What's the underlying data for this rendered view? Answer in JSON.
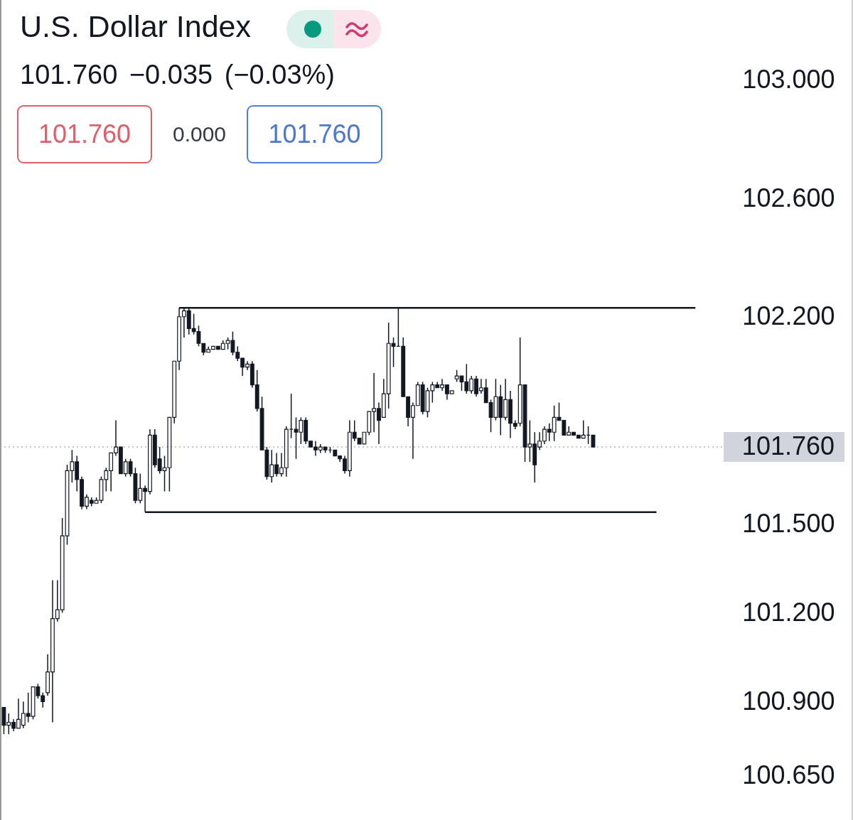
{
  "chart_data": {
    "type": "candlestick",
    "title": "U.S. Dollar Index",
    "subtitle": "101.760 −0.035 (−0.03%)",
    "annotations": [
      "101.760",
      "0.000",
      "101.760"
    ],
    "categories": [
      null,
      null,
      null,
      null,
      null,
      null,
      null,
      null,
      null,
      null,
      null,
      null,
      null,
      null,
      null,
      null,
      null,
      null,
      null,
      null,
      null,
      null,
      null,
      null,
      null,
      null,
      null,
      null,
      null,
      null,
      null,
      null,
      null,
      null,
      null,
      null,
      null,
      null,
      null,
      null,
      null,
      null,
      null,
      null,
      null,
      null,
      null,
      null,
      null,
      null,
      null,
      null,
      null,
      null,
      null,
      null,
      null,
      null,
      null,
      null,
      null,
      null,
      null,
      null,
      null,
      null,
      null,
      null,
      null,
      null,
      null,
      null,
      null,
      null,
      null,
      null,
      null,
      null,
      null,
      null,
      null,
      null,
      null,
      null,
      null,
      null,
      null,
      null,
      null,
      null,
      null,
      null,
      null,
      null,
      null,
      null,
      null,
      null,
      null,
      null,
      null,
      null,
      null,
      null,
      null,
      null,
      null,
      null,
      null,
      null,
      null,
      null,
      null,
      null,
      null,
      null,
      null,
      null,
      null,
      null,
      null,
      null,
      null,
      null,
      null,
      null,
      null,
      null,
      null,
      null,
      null,
      null,
      null,
      null,
      null,
      null,
      null,
      null,
      null,
      null,
      null,
      null,
      null,
      null,
      null,
      null,
      null,
      null
    ],
    "ohlc": [
      [
        100.88,
        100.88,
        100.79,
        100.82
      ],
      [
        100.82,
        100.86,
        100.79,
        100.83
      ],
      [
        100.83,
        100.84,
        100.8,
        100.81
      ],
      [
        100.81,
        100.91,
        100.81,
        100.84
      ],
      [
        100.82,
        100.9,
        100.81,
        100.86
      ],
      [
        100.86,
        100.93,
        100.83,
        100.85
      ],
      [
        100.85,
        100.95,
        100.84,
        100.95
      ],
      [
        100.95,
        100.96,
        100.91,
        100.92
      ],
      [
        100.92,
        100.93,
        100.88,
        100.9
      ],
      [
        100.93,
        101.06,
        100.92,
        101.0
      ],
      [
        101.0,
        101.31,
        100.83,
        101.18
      ],
      [
        101.18,
        101.31,
        101.17,
        101.21
      ],
      [
        101.21,
        101.52,
        101.2,
        101.46
      ],
      [
        101.46,
        101.7,
        101.43,
        101.68
      ],
      [
        101.68,
        101.75,
        101.64,
        101.71
      ],
      [
        101.71,
        101.73,
        101.61,
        101.65
      ],
      [
        101.65,
        101.66,
        101.55,
        101.56
      ],
      [
        101.56,
        101.6,
        101.55,
        101.59
      ],
      [
        101.58,
        101.59,
        101.56,
        101.57
      ],
      [
        101.57,
        101.59,
        101.57,
        101.58
      ],
      [
        101.58,
        101.66,
        101.57,
        101.65
      ],
      [
        101.65,
        101.69,
        101.61,
        101.68
      ],
      [
        101.68,
        101.74,
        101.61,
        101.74
      ],
      [
        101.74,
        101.85,
        101.73,
        101.76
      ],
      [
        101.76,
        101.76,
        101.67,
        101.67
      ],
      [
        101.67,
        101.72,
        101.66,
        101.71
      ],
      [
        101.71,
        101.72,
        101.66,
        101.67
      ],
      [
        101.67,
        101.69,
        101.57,
        101.58
      ],
      [
        101.58,
        101.67,
        101.57,
        101.62
      ],
      [
        101.62,
        101.63,
        101.54,
        101.61
      ],
      [
        101.61,
        101.82,
        101.6,
        101.8
      ],
      [
        101.8,
        101.82,
        101.69,
        101.7
      ],
      [
        101.72,
        101.76,
        101.67,
        101.68
      ],
      [
        101.68,
        101.73,
        101.61,
        101.69
      ],
      [
        101.69,
        101.86,
        101.61,
        101.86
      ],
      [
        101.86,
        102.05,
        101.84,
        102.05
      ],
      [
        102.05,
        102.23,
        102.02,
        102.2
      ],
      [
        102.2,
        102.23,
        102.13,
        102.22
      ],
      [
        102.22,
        102.23,
        102.14,
        102.16
      ],
      [
        102.16,
        102.21,
        102.14,
        102.15
      ],
      [
        102.15,
        102.17,
        102.1,
        102.11
      ],
      [
        102.11,
        102.11,
        102.07,
        102.08
      ],
      [
        102.08,
        102.1,
        102.08,
        102.09
      ],
      [
        102.09,
        102.1,
        102.09,
        102.1
      ],
      [
        102.1,
        102.1,
        102.09,
        102.09
      ],
      [
        102.09,
        102.12,
        102.09,
        102.11
      ],
      [
        102.11,
        102.13,
        102.09,
        102.12
      ],
      [
        102.12,
        102.15,
        102.07,
        102.08
      ],
      [
        102.08,
        102.1,
        102.05,
        102.06
      ],
      [
        102.06,
        102.06,
        102.0,
        102.03
      ],
      [
        102.03,
        102.05,
        102.02,
        102.04
      ],
      [
        102.04,
        102.05,
        101.96,
        101.97
      ],
      [
        101.97,
        102.02,
        101.88,
        101.89
      ],
      [
        101.89,
        101.93,
        101.75,
        101.75
      ],
      [
        101.75,
        101.76,
        101.65,
        101.66
      ],
      [
        101.66,
        101.75,
        101.64,
        101.7
      ],
      [
        101.7,
        101.74,
        101.66,
        101.67
      ],
      [
        101.67,
        101.74,
        101.66,
        101.69
      ],
      [
        101.69,
        101.83,
        101.66,
        101.82
      ],
      [
        101.82,
        101.94,
        101.79,
        101.82
      ],
      [
        101.82,
        101.86,
        101.72,
        101.81
      ],
      [
        101.81,
        101.86,
        101.77,
        101.85
      ],
      [
        101.85,
        101.86,
        101.77,
        101.78
      ],
      [
        101.78,
        101.78,
        101.76,
        101.76
      ],
      [
        101.76,
        101.78,
        101.73,
        101.75
      ],
      [
        101.75,
        101.77,
        101.74,
        101.76
      ],
      [
        101.76,
        101.76,
        101.74,
        101.75
      ],
      [
        101.75,
        101.76,
        101.74,
        101.75
      ],
      [
        101.75,
        101.75,
        101.73,
        101.73
      ],
      [
        101.73,
        101.73,
        101.71,
        101.72
      ],
      [
        101.72,
        101.73,
        101.67,
        101.68
      ],
      [
        101.68,
        101.85,
        101.66,
        101.81
      ],
      [
        101.81,
        101.85,
        101.78,
        101.79
      ],
      [
        101.79,
        101.79,
        101.77,
        101.77
      ],
      [
        101.77,
        101.81,
        101.77,
        101.81
      ],
      [
        101.81,
        101.88,
        101.8,
        101.88
      ],
      [
        101.88,
        102.01,
        101.81,
        101.89
      ],
      [
        101.89,
        101.91,
        101.77,
        101.85
      ],
      [
        101.86,
        101.99,
        101.86,
        101.94
      ],
      [
        101.94,
        102.18,
        101.89,
        102.11
      ],
      [
        102.11,
        102.13,
        102.03,
        102.1
      ],
      [
        102.1,
        102.23,
        102.1,
        102.1
      ],
      [
        102.1,
        102.13,
        101.93,
        101.93
      ],
      [
        101.93,
        101.93,
        101.83,
        101.86
      ],
      [
        101.86,
        101.91,
        101.72,
        101.9
      ],
      [
        101.9,
        101.98,
        101.9,
        101.97
      ],
      [
        101.97,
        101.98,
        101.87,
        101.88
      ],
      [
        101.88,
        101.96,
        101.86,
        101.95
      ],
      [
        101.95,
        101.98,
        101.91,
        101.97
      ],
      [
        101.97,
        101.98,
        101.96,
        101.96
      ],
      [
        101.96,
        101.99,
        101.95,
        101.97
      ],
      [
        101.97,
        101.97,
        101.92,
        101.94
      ],
      [
        101.94,
        101.95,
        101.94,
        101.95
      ],
      [
        101.99,
        102.02,
        101.98,
        102.0
      ],
      [
        102.0,
        102.0,
        101.95,
        101.98
      ],
      [
        101.98,
        102.04,
        101.94,
        101.95
      ],
      [
        101.95,
        102.0,
        101.94,
        101.99
      ],
      [
        101.99,
        102.0,
        101.93,
        101.94
      ],
      [
        101.95,
        101.99,
        101.94,
        101.96
      ],
      [
        101.96,
        101.99,
        101.91,
        101.91
      ],
      [
        101.91,
        101.92,
        101.81,
        101.86
      ],
      [
        101.86,
        101.99,
        101.85,
        101.93
      ],
      [
        101.93,
        101.97,
        101.8,
        101.86
      ],
      [
        101.86,
        101.99,
        101.85,
        101.92
      ],
      [
        101.92,
        101.95,
        101.79,
        101.84
      ],
      [
        101.84,
        101.85,
        101.82,
        101.83
      ],
      [
        101.84,
        102.13,
        101.83,
        101.97
      ],
      [
        101.97,
        101.97,
        101.71,
        101.76
      ],
      [
        101.76,
        101.85,
        101.71,
        101.77
      ],
      [
        101.77,
        101.81,
        101.64,
        101.7
      ],
      [
        101.76,
        101.81,
        101.75,
        101.78
      ],
      [
        101.78,
        101.83,
        101.77,
        101.82
      ],
      [
        101.82,
        101.84,
        101.78,
        101.81
      ],
      [
        101.81,
        101.9,
        101.78,
        101.86
      ],
      [
        101.86,
        101.91,
        101.85,
        101.85
      ],
      [
        101.85,
        101.85,
        101.8,
        101.8
      ],
      [
        101.8,
        101.83,
        101.8,
        101.81
      ],
      [
        101.81,
        101.81,
        101.8,
        101.8
      ],
      [
        101.8,
        101.8,
        101.79,
        101.79
      ],
      [
        101.79,
        101.85,
        101.79,
        101.8
      ],
      [
        101.8,
        101.83,
        101.77,
        101.8
      ],
      [
        101.8,
        101.8,
        101.76,
        101.76
      ],
      null,
      null,
      null,
      null,
      null,
      null,
      null,
      null,
      null,
      null,
      null,
      null,
      null,
      null,
      null,
      null,
      null,
      null,
      null,
      null,
      null,
      null,
      null,
      null,
      null,
      null
    ],
    "color": "#131722",
    "series": [
      {
        "type": "line",
        "color": "#131722",
        "values": [
          null,
          null,
          null,
          null,
          null,
          null,
          null,
          null,
          null,
          null,
          null,
          null,
          null,
          null,
          null,
          null,
          null,
          null,
          null,
          null,
          null,
          null,
          null,
          null,
          null,
          null,
          null,
          null,
          null,
          null,
          null,
          null,
          null,
          null,
          null,
          null,
          102.23,
          102.23,
          102.23,
          102.23,
          102.23,
          102.23,
          102.23,
          102.23,
          102.23,
          102.23,
          102.23,
          102.23,
          102.23,
          102.23,
          102.23,
          102.23,
          102.23,
          102.23,
          102.23,
          102.23,
          102.23,
          102.23,
          102.23,
          102.23,
          102.23,
          102.23,
          102.23,
          102.23,
          102.23,
          102.23,
          102.23,
          102.23,
          102.23,
          102.23,
          102.23,
          102.23,
          102.23,
          102.23,
          102.23,
          102.23,
          102.23,
          102.23,
          102.23,
          102.23,
          102.23,
          102.23,
          102.23,
          102.23,
          102.23,
          102.23,
          102.23,
          102.23,
          102.23,
          102.23,
          102.23,
          102.23,
          102.23,
          102.23,
          102.23,
          102.23,
          102.23,
          102.23,
          102.23,
          102.23,
          102.23,
          102.23,
          102.23,
          102.23,
          102.23,
          102.23,
          102.23,
          102.23,
          102.23,
          102.23,
          102.23,
          102.23,
          102.23,
          102.23,
          102.23,
          102.23,
          102.23,
          102.23,
          102.23,
          102.23,
          102.23,
          102.23,
          102.23,
          102.23,
          102.23,
          102.23,
          102.23,
          102.23,
          102.23,
          102.23,
          102.23,
          102.23,
          102.23,
          102.23,
          102.23,
          102.23,
          102.23,
          102.23,
          102.23,
          102.23,
          102.23,
          102.23,
          102.23,
          null,
          null,
          null,
          null,
          null
        ]
      },
      {
        "type": "line",
        "color": "#131722",
        "values": [
          null,
          null,
          null,
          null,
          null,
          null,
          null,
          null,
          null,
          null,
          null,
          null,
          null,
          null,
          null,
          null,
          null,
          null,
          null,
          null,
          null,
          null,
          null,
          null,
          null,
          null,
          null,
          null,
          null,
          101.54,
          101.54,
          101.54,
          101.54,
          101.54,
          101.54,
          101.54,
          101.54,
          101.54,
          101.54,
          101.54,
          101.54,
          101.54,
          101.54,
          101.54,
          101.54,
          101.54,
          101.54,
          101.54,
          101.54,
          101.54,
          101.54,
          101.54,
          101.54,
          101.54,
          101.54,
          101.54,
          101.54,
          101.54,
          101.54,
          101.54,
          101.54,
          101.54,
          101.54,
          101.54,
          101.54,
          101.54,
          101.54,
          101.54,
          101.54,
          101.54,
          101.54,
          101.54,
          101.54,
          101.54,
          101.54,
          101.54,
          101.54,
          101.54,
          101.54,
          101.54,
          101.54,
          101.54,
          101.54,
          101.54,
          101.54,
          101.54,
          101.54,
          101.54,
          101.54,
          101.54,
          101.54,
          101.54,
          101.54,
          101.54,
          101.54,
          101.54,
          101.54,
          101.54,
          101.54,
          101.54,
          101.54,
          101.54,
          101.54,
          101.54,
          101.54,
          101.54,
          101.54,
          101.54,
          101.54,
          101.54,
          101.54,
          101.54,
          101.54,
          101.54,
          101.54,
          101.54,
          101.54,
          101.54,
          101.54,
          101.54,
          101.54,
          101.54,
          101.54,
          101.54,
          101.54,
          101.54,
          101.54,
          101.54,
          101.54,
          101.54,
          101.54,
          101.54,
          101.54,
          101.54,
          101.54,
          null,
          null,
          null,
          null,
          null,
          null,
          null,
          null,
          null,
          null,
          null,
          null,
          null
        ]
      }
    ],
    "ylim": [
      100.5,
      103.27
    ],
    "yticks": [
      {
        "value": 103,
        "label": "103.000"
      },
      {
        "value": 102.6,
        "label": "102.600"
      },
      {
        "value": 102.2,
        "label": "102.200"
      },
      {
        "value": 101.5,
        "label": "101.500"
      },
      {
        "value": 101.2,
        "label": "101.200"
      },
      {
        "value": 100.9,
        "label": "100.900"
      },
      {
        "value": 100.65,
        "label": "100.650"
      }
    ],
    "ref_lines": [
      {
        "axis": "y",
        "value": 101.76,
        "label": "101.760",
        "color": "#b2b5be",
        "line_style": "dotted"
      }
    ],
    "tick_labels": "y"
  }
}
